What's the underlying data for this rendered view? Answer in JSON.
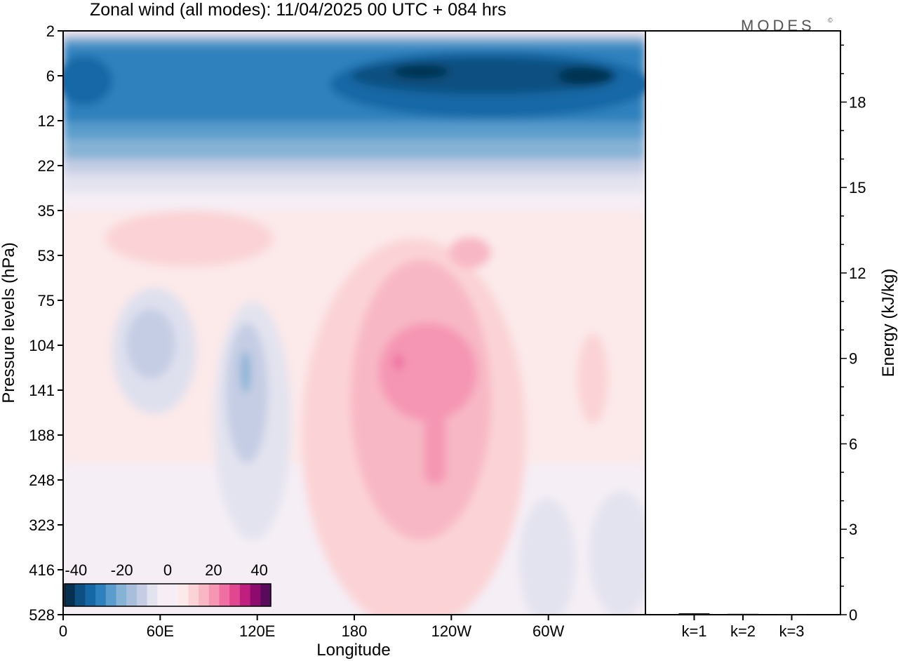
{
  "title": "Zonal wind (all modes):  11/04/2025  00 UTC  + 084 hrs",
  "logo": {
    "text": "MODES",
    "mark": "©"
  },
  "colors": {
    "neg": [
      "#06304f",
      "#0d4f80",
      "#1568a6",
      "#2f81bd",
      "#5a9ccc",
      "#86b2d6",
      "#a8bfdc",
      "#c5cde4",
      "#e3e3ef"
    ],
    "neutral": "#f7eef5",
    "pos": [
      "#fde9e9",
      "#fbd3d6",
      "#f8b7c5",
      "#f596b4",
      "#ef6fa3",
      "#e0478f",
      "#c01f7f",
      "#8f0a6d",
      "#5a0a5c"
    ]
  },
  "chart_data": [
    {
      "type": "heatmap",
      "title": "Zonal wind (all modes):  11/04/2025  00 UTC  + 084 hrs",
      "xlabel": "Longitude",
      "ylabel": "Pressure levels (hPa)",
      "x_ticks": [
        "0",
        "60E",
        "120E",
        "180",
        "120W",
        "60W"
      ],
      "y_ticks": [
        "2",
        "6",
        "12",
        "22",
        "35",
        "53",
        "75",
        "104",
        "141",
        "188",
        "248",
        "323",
        "416",
        "528"
      ],
      "colorbar": {
        "ticks": [
          "-40",
          "-20",
          "0",
          "20",
          "40"
        ],
        "range": [
          -45,
          45
        ]
      },
      "features": [
        {
          "region": "upper levels 2-22 hPa, all longitudes",
          "value_min": -40,
          "value_max": -15,
          "note": "strong easterlies, strongest near 6 hPa around 180-60W"
        },
        {
          "region": "180-120W, 104-248 hPa",
          "value_max": 25,
          "note": "westerly jet maximum near 141 hPa"
        },
        {
          "region": "60E-120E, 75-323 hPa",
          "value_min": -15,
          "note": "weak easterlies"
        }
      ]
    },
    {
      "type": "bar",
      "ylabel": "Energy (kJ/kg)",
      "categories": [
        "k=1",
        "k=2",
        "k=3"
      ],
      "values": [
        0.05,
        0.03,
        0.02
      ],
      "ylim": [
        0,
        20.5
      ],
      "y_ticks": [
        "0",
        "3",
        "6",
        "9",
        "12",
        "15",
        "18"
      ]
    }
  ]
}
